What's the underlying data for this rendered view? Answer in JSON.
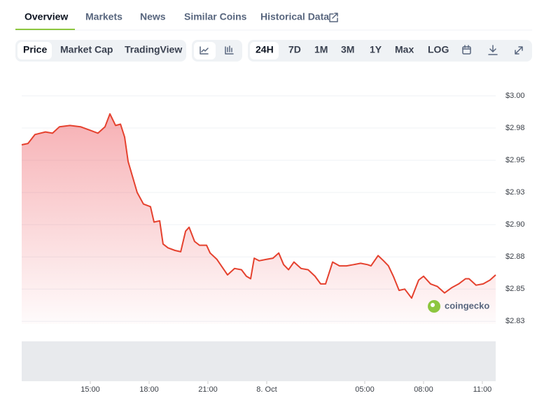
{
  "tabs": [
    "Overview",
    "Markets",
    "News",
    "Similar Coins",
    "Historical Data"
  ],
  "chart_tabs": [
    "Price",
    "Market Cap",
    "TradingView"
  ],
  "ranges": [
    "24H",
    "7D",
    "1M",
    "3M",
    "1Y",
    "Max",
    "LOG"
  ],
  "watermark": "coingecko",
  "chart_data": {
    "type": "line",
    "color": "#e5412e",
    "x": [
      11.5,
      11.82,
      12.18,
      12.71,
      13.07,
      13.43,
      13.96,
      14.5,
      14.86,
      15.39,
      15.75,
      16.0,
      16.29,
      16.54,
      16.75,
      16.93,
      17.18,
      17.39,
      17.71,
      18.07,
      18.25,
      18.54,
      18.71,
      18.96,
      19.32,
      19.61,
      19.86,
      20.04,
      20.32,
      20.57,
      20.93,
      21.11,
      21.46,
      21.82,
      22.0,
      22.36,
      22.71,
      22.96,
      23.18,
      23.36,
      23.61,
      23.96,
      24.32,
      24.61,
      24.86,
      25.11,
      25.39,
      25.75,
      26.11,
      26.46,
      26.75,
      27.0,
      27.36,
      27.71,
      28.07,
      28.43,
      28.79,
      29.14,
      29.32,
      29.68,
      29.96,
      30.21,
      30.46,
      30.75,
      31.04,
      31.39,
      31.75,
      32.0,
      32.36,
      32.71,
      33.07,
      33.43,
      33.79,
      34.14,
      34.32,
      34.68,
      35.04,
      35.39,
      35.68
    ],
    "values": [
      2.962,
      2.963,
      2.97,
      2.972,
      2.971,
      2.976,
      2.977,
      2.976,
      2.974,
      2.971,
      2.976,
      2.986,
      2.977,
      2.978,
      2.968,
      2.949,
      2.936,
      2.925,
      2.916,
      2.914,
      2.902,
      2.903,
      2.885,
      2.882,
      2.88,
      2.879,
      2.895,
      2.898,
      2.887,
      2.884,
      2.884,
      2.878,
      2.873,
      2.865,
      2.861,
      2.866,
      2.865,
      2.86,
      2.858,
      2.874,
      2.872,
      2.873,
      2.874,
      2.878,
      2.869,
      2.865,
      2.871,
      2.866,
      2.865,
      2.86,
      2.854,
      2.854,
      2.871,
      2.868,
      2.868,
      2.869,
      2.87,
      2.869,
      2.868,
      2.876,
      2.872,
      2.868,
      2.86,
      2.849,
      2.85,
      2.843,
      2.857,
      2.86,
      2.854,
      2.852,
      2.847,
      2.851,
      2.854,
      2.858,
      2.858,
      2.853,
      2.854,
      2.857,
      2.861
    ],
    "xlim": [
      11.5,
      35.68
    ],
    "xticks": [
      {
        "value": 15,
        "label": "15:00"
      },
      {
        "value": 18,
        "label": "18:00"
      },
      {
        "value": 21,
        "label": "21:00"
      },
      {
        "value": 24,
        "label": "8. Oct"
      },
      {
        "value": 29,
        "label": "05:00"
      },
      {
        "value": 32,
        "label": "08:00"
      },
      {
        "value": 35,
        "label": "11:00"
      }
    ],
    "ylim": [
      2.823,
      3.0
    ],
    "yticks": [
      {
        "value": 3.0,
        "label": "$3.00"
      },
      {
        "value": 2.975,
        "label": "$2.98"
      },
      {
        "value": 2.95,
        "label": "$2.95"
      },
      {
        "value": 2.925,
        "label": "$2.93"
      },
      {
        "value": 2.9,
        "label": "$2.90"
      },
      {
        "value": 2.875,
        "label": "$2.88"
      },
      {
        "value": 2.85,
        "label": "$2.85"
      },
      {
        "value": 2.825,
        "label": "$2.83"
      }
    ],
    "grid": true
  }
}
